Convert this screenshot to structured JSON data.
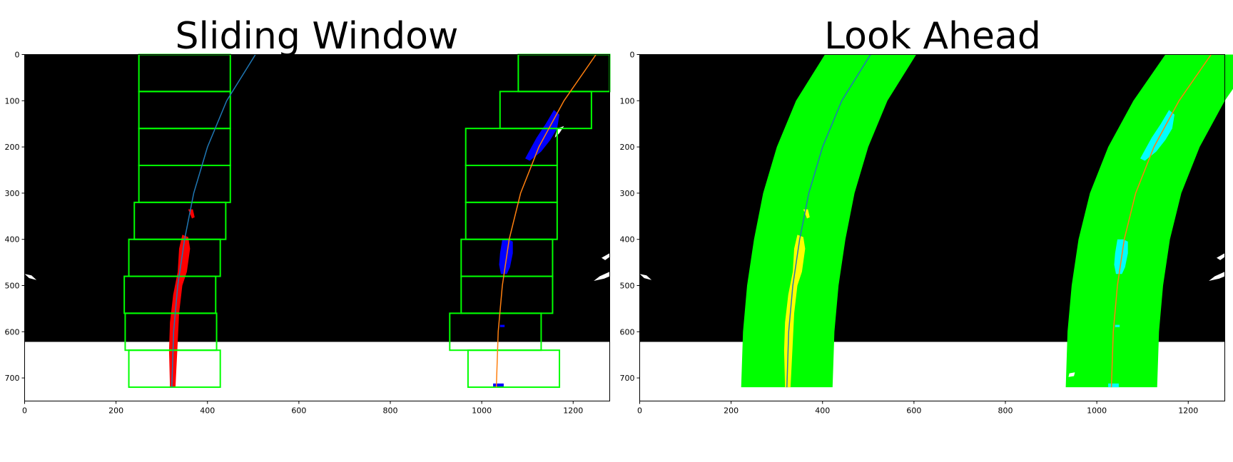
{
  "chart_data": [
    {
      "type": "image",
      "title": "Sliding Window",
      "xlim": [
        0,
        1280
      ],
      "ylim": [
        750,
        0
      ],
      "image_extent": {
        "width": 1280,
        "height": 720
      },
      "xticks": [
        0,
        200,
        400,
        600,
        800,
        1000,
        1200
      ],
      "yticks": [
        0,
        100,
        200,
        300,
        400,
        500,
        600,
        700
      ],
      "left_fit": {
        "points": [
          [
            505,
            0
          ],
          [
            442,
            100
          ],
          [
            400,
            200
          ],
          [
            370,
            300
          ],
          [
            350,
            400
          ],
          [
            335,
            500
          ],
          [
            326,
            600
          ],
          [
            322,
            720
          ]
        ],
        "color": "#1f77b4"
      },
      "right_fit": {
        "points": [
          [
            1250,
            0
          ],
          [
            1180,
            100
          ],
          [
            1125,
            200
          ],
          [
            1085,
            300
          ],
          [
            1060,
            400
          ],
          [
            1045,
            500
          ],
          [
            1036,
            600
          ],
          [
            1032,
            720
          ]
        ],
        "color": "#ff7f0e"
      },
      "left_windows": [
        [
          250,
          0,
          450,
          80
        ],
        [
          250,
          80,
          450,
          160
        ],
        [
          250,
          160,
          450,
          240
        ],
        [
          250,
          240,
          450,
          320
        ],
        [
          240,
          320,
          440,
          400
        ],
        [
          228,
          400,
          428,
          480
        ],
        [
          218,
          480,
          418,
          560
        ],
        [
          220,
          560,
          420,
          640
        ],
        [
          228,
          640,
          428,
          720
        ]
      ],
      "right_windows": [
        [
          1080,
          0,
          1280,
          80
        ],
        [
          1040,
          80,
          1240,
          160
        ],
        [
          965,
          160,
          1165,
          240
        ],
        [
          965,
          240,
          1165,
          320
        ],
        [
          965,
          320,
          1165,
          400
        ],
        [
          955,
          400,
          1155,
          480
        ],
        [
          955,
          480,
          1155,
          560
        ],
        [
          930,
          560,
          1130,
          640
        ],
        [
          970,
          640,
          1170,
          720
        ]
      ],
      "colors": {
        "window": "#00ff00",
        "left_pixels": "#ff0000",
        "right_pixels": "#0000ff",
        "background": "#000000",
        "noise": "#ffffff"
      }
    },
    {
      "type": "image",
      "title": "Look Ahead",
      "xlim": [
        0,
        1280
      ],
      "ylim": [
        750,
        0
      ],
      "image_extent": {
        "width": 1280,
        "height": 720
      },
      "xticks": [
        0,
        200,
        400,
        600,
        800,
        1000,
        1200
      ],
      "yticks": [
        0,
        100,
        200,
        300,
        400,
        500,
        600,
        700
      ],
      "left_fit": {
        "points": [
          [
            505,
            0
          ],
          [
            442,
            100
          ],
          [
            400,
            200
          ],
          [
            370,
            300
          ],
          [
            350,
            400
          ],
          [
            335,
            500
          ],
          [
            326,
            600
          ],
          [
            322,
            720
          ]
        ],
        "color": "#1f77b4"
      },
      "right_fit": {
        "points": [
          [
            1250,
            0
          ],
          [
            1180,
            100
          ],
          [
            1125,
            200
          ],
          [
            1085,
            300
          ],
          [
            1060,
            400
          ],
          [
            1045,
            500
          ],
          [
            1036,
            600
          ],
          [
            1032,
            720
          ]
        ],
        "color": "#ff7f0e"
      },
      "margin": 100,
      "colors": {
        "band": "#00ff00",
        "left_pixels": "#ffff00",
        "right_pixels": "#00ffff",
        "background": "#000000",
        "noise": "#ffffff"
      }
    }
  ]
}
